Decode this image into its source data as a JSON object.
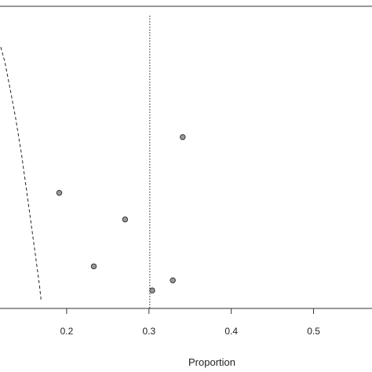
{
  "chart_data": {
    "type": "scatter",
    "title": "",
    "xlabel": "Proportion",
    "ylabel": "",
    "xlim": [
      0.119,
      0.571
    ],
    "ylim": [
      0,
      1
    ],
    "grid": false,
    "legend": "none",
    "x_ticks": [
      0.2,
      0.3,
      0.4,
      0.5
    ],
    "x_tick_labels": [
      "0.2",
      "0.3",
      "0.4",
      "0.5"
    ],
    "series": [
      {
        "values": [
          {
            "x": 0.191,
            "y": 0.425
          },
          {
            "x": 0.233,
            "y": 0.135
          },
          {
            "x": 0.271,
            "y": 0.32
          },
          {
            "x": 0.304,
            "y": 0.04
          },
          {
            "x": 0.329,
            "y": 0.08
          },
          {
            "x": 0.341,
            "y": 0.645
          }
        ]
      }
    ],
    "reference_line": {
      "orientation": "vertical",
      "x": 0.301,
      "style": "dotted"
    },
    "funnel_curve": {
      "style": "dashed",
      "points": [
        {
          "x": 0.12,
          "y": 1.0
        },
        {
          "x": 0.125,
          "y": 0.94
        },
        {
          "x": 0.131,
          "y": 0.84
        },
        {
          "x": 0.138,
          "y": 0.72
        },
        {
          "x": 0.145,
          "y": 0.58
        },
        {
          "x": 0.151,
          "y": 0.44
        },
        {
          "x": 0.157,
          "y": 0.3
        },
        {
          "x": 0.162,
          "y": 0.18
        },
        {
          "x": 0.167,
          "y": 0.06
        },
        {
          "x": 0.169,
          "y": 0.0
        }
      ]
    },
    "colors": {
      "point_fill": "#9a9a9a",
      "point_stroke": "#333333",
      "line": "#222222"
    }
  }
}
